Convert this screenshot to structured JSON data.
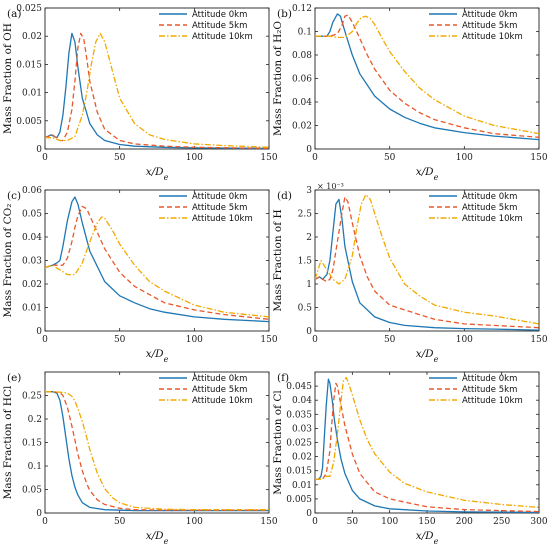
{
  "chart_data": [
    {
      "type": "line",
      "panel_label": "(a)",
      "ylabel": "Mass Fraction of OH",
      "xlabel": "x/D_e",
      "xlim": [
        0,
        150
      ],
      "ylim": [
        0,
        0.025
      ],
      "xticks": [
        0,
        50,
        100,
        150
      ],
      "xtick_labels": [
        "0",
        "50",
        "100",
        "150"
      ],
      "yticks": [
        0,
        0.005,
        0.01,
        0.015,
        0.02,
        0.025
      ],
      "ytick_labels": [
        "0",
        "0.005",
        "0.01",
        "0.015",
        "0.02",
        "0.025"
      ],
      "legend_loc": "top-right",
      "series": [
        {
          "name": "Attitude 0km",
          "color": "#1f77b4",
          "dash": "solid",
          "x": [
            0,
            4,
            8,
            10,
            12,
            14,
            16,
            18,
            20,
            22,
            25,
            30,
            35,
            40,
            50,
            60,
            80,
            100,
            150
          ],
          "y": [
            0.002,
            0.0025,
            0.002,
            0.003,
            0.006,
            0.011,
            0.017,
            0.0205,
            0.019,
            0.0145,
            0.009,
            0.0045,
            0.0025,
            0.0015,
            0.0008,
            0.0005,
            0.0003,
            0.0002,
            0.0001
          ]
        },
        {
          "name": "Attitude 5km",
          "color": "#e8582a",
          "dash": "dashed",
          "x": [
            0,
            5,
            10,
            12,
            15,
            18,
            20,
            22,
            24,
            26,
            28,
            30,
            35,
            40,
            50,
            60,
            80,
            100,
            150
          ],
          "y": [
            0.002,
            0.0025,
            0.0015,
            0.0015,
            0.003,
            0.007,
            0.012,
            0.018,
            0.0205,
            0.0195,
            0.016,
            0.012,
            0.0065,
            0.0035,
            0.0015,
            0.0009,
            0.0005,
            0.0003,
            0.0001
          ]
        },
        {
          "name": "Attitude 10km",
          "color": "#f2a900",
          "dash": "dashdot",
          "x": [
            0,
            5,
            10,
            15,
            20,
            25,
            28,
            31,
            34,
            37,
            40,
            45,
            50,
            60,
            70,
            80,
            100,
            120,
            150
          ],
          "y": [
            0.002,
            0.002,
            0.0015,
            0.0015,
            0.0022,
            0.006,
            0.01,
            0.015,
            0.019,
            0.0205,
            0.019,
            0.014,
            0.009,
            0.0045,
            0.0025,
            0.0017,
            0.0009,
            0.0006,
            0.0003
          ]
        }
      ]
    },
    {
      "type": "line",
      "panel_label": "(b)",
      "ylabel": "Mass Fraction of H₂O",
      "xlabel": "x/D_e",
      "xlim": [
        0,
        150
      ],
      "ylim": [
        0,
        0.12
      ],
      "xticks": [
        0,
        50,
        100,
        150
      ],
      "xtick_labels": [
        "0",
        "50",
        "100",
        "150"
      ],
      "yticks": [
        0,
        0.02,
        0.04,
        0.06,
        0.08,
        0.1,
        0.12
      ],
      "ytick_labels": [
        "0",
        "0.02",
        "0.04",
        "0.06",
        "0.08",
        "0.1",
        "0.12"
      ],
      "legend_loc": "top-right",
      "series": [
        {
          "name": "Attitude 0km",
          "color": "#1f77b4",
          "dash": "solid",
          "x": [
            0,
            5,
            8,
            10,
            12,
            15,
            17,
            20,
            25,
            30,
            40,
            50,
            60,
            70,
            80,
            100,
            120,
            150
          ],
          "y": [
            0.096,
            0.096,
            0.096,
            0.1,
            0.108,
            0.115,
            0.113,
            0.1,
            0.08,
            0.064,
            0.045,
            0.034,
            0.027,
            0.022,
            0.018,
            0.014,
            0.011,
            0.008
          ]
        },
        {
          "name": "Attitude 5km",
          "color": "#e8582a",
          "dash": "dashed",
          "x": [
            0,
            5,
            10,
            15,
            18,
            20,
            22,
            25,
            30,
            35,
            40,
            50,
            60,
            70,
            80,
            100,
            120,
            150
          ],
          "y": [
            0.096,
            0.096,
            0.096,
            0.098,
            0.105,
            0.113,
            0.114,
            0.108,
            0.094,
            0.08,
            0.068,
            0.05,
            0.039,
            0.031,
            0.025,
            0.018,
            0.013,
            0.01
          ]
        },
        {
          "name": "Attitude 10km",
          "color": "#f2a900",
          "dash": "dashdot",
          "x": [
            0,
            5,
            10,
            15,
            20,
            25,
            28,
            31,
            34,
            37,
            40,
            45,
            50,
            60,
            70,
            80,
            100,
            120,
            150
          ],
          "y": [
            0.096,
            0.096,
            0.096,
            0.095,
            0.095,
            0.1,
            0.107,
            0.112,
            0.113,
            0.111,
            0.106,
            0.094,
            0.083,
            0.066,
            0.052,
            0.042,
            0.028,
            0.02,
            0.013
          ]
        }
      ]
    },
    {
      "type": "line",
      "panel_label": "(c)",
      "ylabel": "Mass Fraction of CO₂",
      "xlabel": "x/D_e",
      "xlim": [
        0,
        150
      ],
      "ylim": [
        0,
        0.06
      ],
      "xticks": [
        0,
        50,
        100,
        150
      ],
      "xtick_labels": [
        "0",
        "50",
        "100",
        "150"
      ],
      "yticks": [
        0,
        0.01,
        0.02,
        0.03,
        0.04,
        0.05,
        0.06
      ],
      "ytick_labels": [
        "0",
        "0.01",
        "0.02",
        "0.03",
        "0.04",
        "0.05",
        "0.06"
      ],
      "legend_loc": "top-right",
      "series": [
        {
          "name": "Attitude 0km",
          "color": "#1f77b4",
          "dash": "solid",
          "x": [
            0,
            5,
            8,
            10,
            12,
            15,
            18,
            20,
            22,
            25,
            30,
            40,
            50,
            60,
            70,
            80,
            100,
            120,
            150
          ],
          "y": [
            0.027,
            0.028,
            0.029,
            0.03,
            0.036,
            0.047,
            0.055,
            0.057,
            0.054,
            0.046,
            0.034,
            0.021,
            0.015,
            0.012,
            0.0095,
            0.008,
            0.006,
            0.005,
            0.004
          ]
        },
        {
          "name": "Attitude 5km",
          "color": "#e8582a",
          "dash": "dashed",
          "x": [
            0,
            5,
            10,
            12,
            15,
            18,
            20,
            22,
            25,
            28,
            30,
            35,
            40,
            50,
            60,
            80,
            100,
            120,
            150
          ],
          "y": [
            0.027,
            0.028,
            0.028,
            0.028,
            0.031,
            0.038,
            0.044,
            0.049,
            0.053,
            0.052,
            0.049,
            0.042,
            0.035,
            0.025,
            0.019,
            0.012,
            0.009,
            0.007,
            0.005
          ]
        },
        {
          "name": "Attitude 10km",
          "color": "#f2a900",
          "dash": "dashdot",
          "x": [
            0,
            5,
            10,
            15,
            20,
            25,
            30,
            35,
            38,
            40,
            45,
            50,
            60,
            70,
            80,
            100,
            120,
            150
          ],
          "y": [
            0.027,
            0.028,
            0.026,
            0.024,
            0.024,
            0.029,
            0.038,
            0.046,
            0.0485,
            0.048,
            0.043,
            0.037,
            0.028,
            0.021,
            0.017,
            0.011,
            0.008,
            0.006
          ]
        }
      ]
    },
    {
      "type": "line",
      "panel_label": "(d)",
      "ylabel": "Mass Fraction of H",
      "xlabel": "x/D_e",
      "xlim": [
        0,
        150
      ],
      "ylim": [
        0,
        3
      ],
      "exponent_label": "× 10⁻³",
      "xticks": [
        0,
        50,
        100,
        150
      ],
      "xtick_labels": [
        "0",
        "50",
        "100",
        "150"
      ],
      "yticks": [
        0,
        0.5,
        1,
        1.5,
        2,
        2.5,
        3
      ],
      "ytick_labels": [
        "0",
        "0.5",
        "1",
        "1.5",
        "2",
        "2.5",
        "3"
      ],
      "legend_loc": "top-right",
      "series": [
        {
          "name": "Attitude 0km",
          "color": "#1f77b4",
          "dash": "solid",
          "x": [
            0,
            3,
            5,
            8,
            10,
            12,
            14,
            16,
            18,
            20,
            25,
            30,
            40,
            50,
            60,
            80,
            100,
            120,
            150
          ],
          "y": [
            1.1,
            1.15,
            1.1,
            1.2,
            1.5,
            2.1,
            2.7,
            2.8,
            2.4,
            1.8,
            1.05,
            0.6,
            0.3,
            0.18,
            0.12,
            0.07,
            0.05,
            0.04,
            0.02
          ]
        },
        {
          "name": "Attitude 5km",
          "color": "#e8582a",
          "dash": "dashed",
          "x": [
            0,
            3,
            5,
            8,
            10,
            12,
            15,
            18,
            20,
            22,
            25,
            30,
            35,
            40,
            50,
            60,
            80,
            100,
            150
          ],
          "y": [
            1.1,
            1.15,
            1.1,
            1.05,
            1.1,
            1.3,
            1.9,
            2.5,
            2.85,
            2.75,
            2.3,
            1.6,
            1.15,
            0.85,
            0.55,
            0.45,
            0.25,
            0.15,
            0.07
          ]
        },
        {
          "name": "Attitude 10km",
          "color": "#f2a900",
          "dash": "dashdot",
          "x": [
            0,
            4,
            8,
            12,
            16,
            20,
            25,
            28,
            31,
            34,
            37,
            40,
            45,
            50,
            60,
            70,
            80,
            100,
            120,
            150
          ],
          "y": [
            1.1,
            1.5,
            1.3,
            1.1,
            1.0,
            1.1,
            1.6,
            2.2,
            2.7,
            2.9,
            2.8,
            2.5,
            2.0,
            1.55,
            1.0,
            0.75,
            0.55,
            0.4,
            0.32,
            0.15
          ]
        }
      ]
    },
    {
      "type": "line",
      "panel_label": "(e)",
      "ylabel": "Mass Fraction of HCl",
      "xlabel": "x/D_e",
      "xlim": [
        0,
        150
      ],
      "ylim": [
        0,
        0.3
      ],
      "xticks": [
        0,
        50,
        100,
        150
      ],
      "xtick_labels": [
        "0",
        "50",
        "100",
        "150"
      ],
      "yticks": [
        0,
        0.05,
        0.1,
        0.15,
        0.2,
        0.25
      ],
      "ytick_labels": [
        "0",
        "0.05",
        "0.1",
        "0.15",
        "0.2",
        "0.25"
      ],
      "legend_loc": "top-right",
      "series": [
        {
          "name": "Attitude 0km",
          "color": "#1f77b4",
          "dash": "solid",
          "x": [
            0,
            5,
            8,
            10,
            12,
            14,
            16,
            18,
            20,
            22,
            25,
            30,
            40,
            50,
            60,
            100,
            150
          ],
          "y": [
            0.258,
            0.258,
            0.255,
            0.24,
            0.205,
            0.16,
            0.115,
            0.08,
            0.055,
            0.038,
            0.022,
            0.012,
            0.007,
            0.006,
            0.005,
            0.005,
            0.005
          ]
        },
        {
          "name": "Attitude 5km",
          "color": "#e8582a",
          "dash": "dashed",
          "x": [
            0,
            5,
            10,
            12,
            15,
            18,
            20,
            22,
            25,
            28,
            30,
            35,
            40,
            50,
            60,
            80,
            100,
            150
          ],
          "y": [
            0.258,
            0.258,
            0.256,
            0.25,
            0.225,
            0.185,
            0.155,
            0.125,
            0.09,
            0.062,
            0.048,
            0.028,
            0.018,
            0.01,
            0.007,
            0.006,
            0.006,
            0.006
          ]
        },
        {
          "name": "Attitude 10km",
          "color": "#f2a900",
          "dash": "dashdot",
          "x": [
            0,
            5,
            10,
            15,
            18,
            20,
            22,
            25,
            28,
            30,
            35,
            40,
            45,
            50,
            60,
            80,
            100,
            150
          ],
          "y": [
            0.258,
            0.258,
            0.257,
            0.255,
            0.248,
            0.238,
            0.222,
            0.195,
            0.16,
            0.135,
            0.085,
            0.052,
            0.033,
            0.022,
            0.012,
            0.008,
            0.007,
            0.007
          ]
        }
      ]
    },
    {
      "type": "line",
      "panel_label": "(f)",
      "ylabel": "Mass Fraction of Cl",
      "xlabel": "x/D_e",
      "xlim": [
        0,
        300
      ],
      "ylim": [
        0,
        0.05
      ],
      "xticks": [
        0,
        50,
        100,
        150,
        200,
        250,
        300
      ],
      "xtick_labels": [
        "0",
        "50",
        "100",
        "150",
        "200",
        "250",
        "300"
      ],
      "yticks": [
        0,
        0.005,
        0.01,
        0.015,
        0.02,
        0.025,
        0.03,
        0.035,
        0.04,
        0.045
      ],
      "ytick_labels": [
        "0",
        "0.005",
        "0.01",
        "0.015",
        "0.02",
        "0.025",
        "0.03",
        "0.035",
        "0.04",
        "0.045"
      ],
      "legend_loc": "top-right",
      "series": [
        {
          "name": "Attitude 0km",
          "color": "#1f77b4",
          "dash": "solid",
          "x": [
            0,
            5,
            8,
            10,
            12,
            15,
            18,
            20,
            23,
            26,
            30,
            35,
            40,
            50,
            60,
            80,
            100,
            150,
            200,
            300
          ],
          "y": [
            0.012,
            0.012,
            0.013,
            0.016,
            0.025,
            0.038,
            0.0475,
            0.046,
            0.04,
            0.033,
            0.026,
            0.019,
            0.014,
            0.008,
            0.005,
            0.0025,
            0.0015,
            0.0007,
            0.0004,
            0.0002
          ]
        },
        {
          "name": "Attitude 5km",
          "color": "#e8582a",
          "dash": "dashed",
          "x": [
            0,
            5,
            10,
            15,
            20,
            22,
            25,
            28,
            30,
            35,
            40,
            50,
            60,
            80,
            100,
            150,
            200,
            300
          ],
          "y": [
            0.012,
            0.012,
            0.012,
            0.014,
            0.022,
            0.03,
            0.04,
            0.046,
            0.045,
            0.038,
            0.031,
            0.021,
            0.014,
            0.0075,
            0.005,
            0.0022,
            0.0012,
            0.0005
          ]
        },
        {
          "name": "Attitude 10km",
          "color": "#f2a900",
          "dash": "dashdot",
          "x": [
            0,
            5,
            10,
            15,
            20,
            25,
            30,
            35,
            38,
            42,
            45,
            50,
            60,
            70,
            80,
            100,
            120,
            150,
            200,
            250,
            300
          ],
          "y": [
            0.012,
            0.012,
            0.012,
            0.013,
            0.013,
            0.018,
            0.028,
            0.04,
            0.047,
            0.048,
            0.046,
            0.042,
            0.033,
            0.026,
            0.021,
            0.0145,
            0.0105,
            0.0075,
            0.0045,
            0.003,
            0.002
          ]
        }
      ]
    }
  ]
}
